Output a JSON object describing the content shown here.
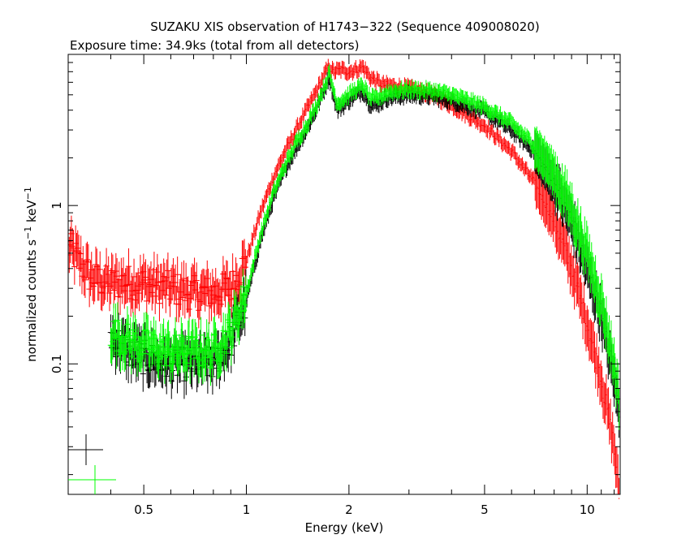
{
  "chart_data": {
    "type": "scatter",
    "title": "SUZAKU XIS observation of H1743−322 (Sequence 409008020)",
    "subtitle": "Exposure time: 34.9ks (total from all detectors)",
    "xlabel": "Energy (keV)",
    "ylabel_main": "normalized counts s",
    "ylabel_sup1": "−1",
    "ylabel_mid": " keV",
    "ylabel_sup2": "−1",
    "xscale": "log",
    "yscale": "log",
    "xlim": [
      0.3,
      12.5
    ],
    "ylim": [
      0.015,
      9.0
    ],
    "x_tick_labels": [
      "0.5",
      "1",
      "2",
      "5",
      "10"
    ],
    "x_tick_values": [
      0.5,
      1,
      2,
      5,
      10
    ],
    "y_tick_labels": [
      "0.1",
      "1"
    ],
    "y_tick_values": [
      0.1,
      1
    ],
    "series": [
      {
        "color": "#ff0000",
        "points": [
          [
            0.3,
            0.55
          ],
          [
            0.35,
            0.35
          ],
          [
            0.4,
            0.32
          ],
          [
            0.45,
            0.33
          ],
          [
            0.5,
            0.32
          ],
          [
            0.6,
            0.3
          ],
          [
            0.7,
            0.28
          ],
          [
            0.8,
            0.28
          ],
          [
            0.9,
            0.3
          ],
          [
            1.0,
            0.45
          ],
          [
            1.1,
            0.9
          ],
          [
            1.2,
            1.5
          ],
          [
            1.3,
            2.2
          ],
          [
            1.4,
            3.0
          ],
          [
            1.5,
            4.0
          ],
          [
            1.6,
            5.2
          ],
          [
            1.7,
            6.8
          ],
          [
            1.75,
            7.5
          ],
          [
            1.8,
            7.0
          ],
          [
            1.9,
            7.2
          ],
          [
            2.0,
            7.0
          ],
          [
            2.1,
            7.2
          ],
          [
            2.2,
            7.5
          ],
          [
            2.3,
            6.5
          ],
          [
            2.5,
            5.8
          ],
          [
            3.0,
            5.5
          ],
          [
            3.5,
            5.0
          ],
          [
            4.0,
            4.3
          ],
          [
            5.0,
            3.2
          ],
          [
            6.0,
            2.2
          ],
          [
            7.0,
            1.4
          ],
          [
            8.0,
            0.8
          ],
          [
            9.0,
            0.4
          ],
          [
            10.0,
            0.18
          ],
          [
            11.0,
            0.08
          ],
          [
            12.0,
            0.03
          ],
          [
            12.4,
            0.015
          ]
        ]
      },
      {
        "color": "#000000",
        "points": [
          [
            0.4,
            0.15
          ],
          [
            0.45,
            0.12
          ],
          [
            0.5,
            0.11
          ],
          [
            0.6,
            0.1
          ],
          [
            0.7,
            0.1
          ],
          [
            0.8,
            0.1
          ],
          [
            0.9,
            0.14
          ],
          [
            1.0,
            0.25
          ],
          [
            1.1,
            0.6
          ],
          [
            1.2,
            1.1
          ],
          [
            1.3,
            1.7
          ],
          [
            1.4,
            2.3
          ],
          [
            1.5,
            3.0
          ],
          [
            1.6,
            4.0
          ],
          [
            1.7,
            5.5
          ],
          [
            1.75,
            6.5
          ],
          [
            1.8,
            5.0
          ],
          [
            1.85,
            4.0
          ],
          [
            1.9,
            4.2
          ],
          [
            2.0,
            4.6
          ],
          [
            2.1,
            5.0
          ],
          [
            2.2,
            5.3
          ],
          [
            2.3,
            4.4
          ],
          [
            2.4,
            4.3
          ],
          [
            2.6,
            4.8
          ],
          [
            3.0,
            5.0
          ],
          [
            3.5,
            4.9
          ],
          [
            4.0,
            4.6
          ],
          [
            5.0,
            3.9
          ],
          [
            6.0,
            3.0
          ],
          [
            7.0,
            2.2
          ],
          [
            8.0,
            1.4
          ],
          [
            9.0,
            0.8
          ],
          [
            10.0,
            0.4
          ],
          [
            11.0,
            0.2
          ],
          [
            12.0,
            0.08
          ],
          [
            12.4,
            0.05
          ]
        ]
      },
      {
        "color": "#00ff00",
        "points": [
          [
            0.4,
            0.16
          ],
          [
            0.45,
            0.14
          ],
          [
            0.5,
            0.13
          ],
          [
            0.6,
            0.12
          ],
          [
            0.7,
            0.12
          ],
          [
            0.8,
            0.12
          ],
          [
            0.9,
            0.16
          ],
          [
            1.0,
            0.28
          ],
          [
            1.1,
            0.65
          ],
          [
            1.2,
            1.2
          ],
          [
            1.3,
            1.8
          ],
          [
            1.4,
            2.5
          ],
          [
            1.5,
            3.2
          ],
          [
            1.6,
            4.2
          ],
          [
            1.7,
            5.8
          ],
          [
            1.75,
            6.8
          ],
          [
            1.8,
            5.4
          ],
          [
            1.85,
            4.4
          ],
          [
            1.9,
            4.6
          ],
          [
            2.0,
            5.0
          ],
          [
            2.1,
            5.4
          ],
          [
            2.2,
            5.7
          ],
          [
            2.3,
            4.8
          ],
          [
            2.4,
            4.7
          ],
          [
            2.6,
            5.2
          ],
          [
            3.0,
            5.4
          ],
          [
            3.5,
            5.3
          ],
          [
            4.0,
            5.0
          ],
          [
            5.0,
            4.2
          ],
          [
            6.0,
            3.3
          ],
          [
            7.0,
            2.4
          ],
          [
            8.0,
            1.6
          ],
          [
            9.0,
            0.95
          ],
          [
            10.0,
            0.5
          ],
          [
            11.0,
            0.25
          ],
          [
            12.0,
            0.1
          ],
          [
            12.4,
            0.06
          ]
        ]
      }
    ],
    "grid": false,
    "legend": "none"
  }
}
